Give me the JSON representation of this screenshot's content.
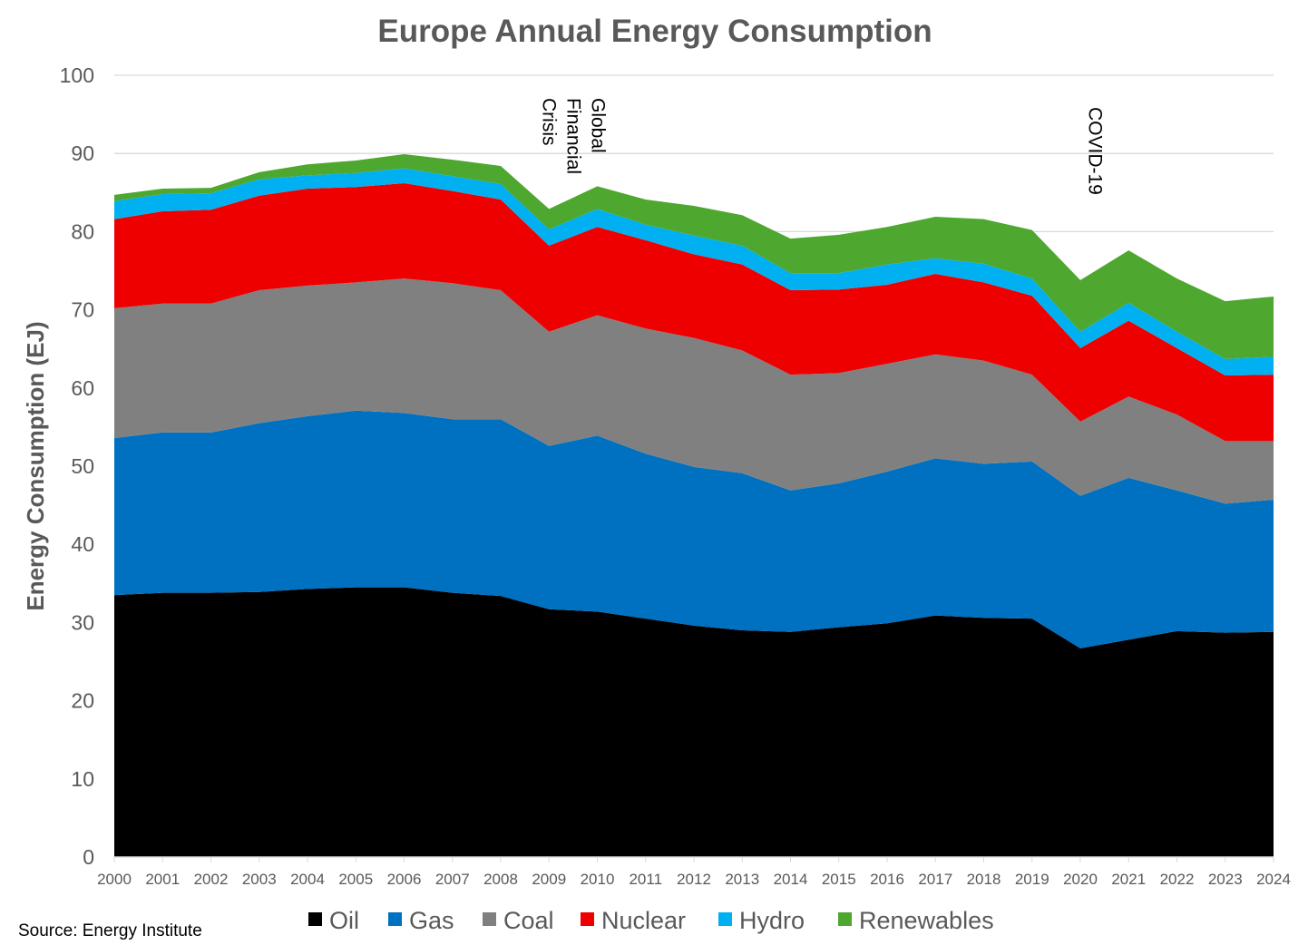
{
  "chart_data": {
    "type": "area",
    "stacked": true,
    "title": "Europe Annual Energy Consumption",
    "xlabel": "",
    "ylabel": "Energy Consumption (EJ)",
    "ylim": [
      0,
      100
    ],
    "yticks": [
      0,
      10,
      20,
      30,
      40,
      50,
      60,
      70,
      80,
      90,
      100
    ],
    "grid": true,
    "legend_position": "bottom",
    "x": [
      2000,
      2001,
      2002,
      2003,
      2004,
      2005,
      2006,
      2007,
      2008,
      2009,
      2010,
      2011,
      2012,
      2013,
      2014,
      2015,
      2016,
      2017,
      2018,
      2019,
      2020,
      2021,
      2022,
      2023,
      2024
    ],
    "series": [
      {
        "name": "Oil",
        "color": "#000000",
        "values": [
          33.5,
          33.8,
          33.8,
          33.9,
          34.3,
          34.5,
          34.5,
          33.8,
          33.4,
          31.7,
          31.4,
          30.5,
          29.6,
          29.0,
          28.8,
          29.4,
          29.9,
          30.9,
          30.6,
          30.5,
          26.7,
          27.8,
          28.9,
          28.7,
          28.8
        ]
      },
      {
        "name": "Gas",
        "color": "#0070C0",
        "values": [
          20.1,
          20.5,
          20.5,
          21.6,
          22.1,
          22.6,
          22.3,
          22.2,
          22.6,
          20.9,
          22.5,
          21.1,
          20.3,
          20.1,
          18.1,
          18.4,
          19.4,
          20.1,
          19.7,
          20.1,
          19.5,
          20.7,
          18.0,
          16.5,
          16.9
        ]
      },
      {
        "name": "Coal",
        "color": "#808080",
        "values": [
          16.6,
          16.5,
          16.5,
          17.0,
          16.7,
          16.4,
          17.2,
          17.4,
          16.5,
          14.6,
          15.4,
          16.0,
          16.5,
          15.7,
          14.8,
          14.1,
          13.8,
          13.3,
          13.2,
          11.1,
          9.5,
          10.4,
          9.7,
          8.0,
          7.5
        ]
      },
      {
        "name": "Nuclear",
        "color": "#EE0000",
        "values": [
          11.4,
          11.8,
          12.0,
          12.1,
          12.4,
          12.2,
          12.2,
          11.8,
          11.6,
          11.0,
          11.3,
          11.3,
          10.7,
          11.0,
          10.8,
          10.7,
          10.1,
          10.3,
          10.0,
          10.1,
          9.4,
          9.7,
          8.5,
          8.4,
          8.5
        ]
      },
      {
        "name": "Hydro",
        "color": "#00B0F0",
        "values": [
          2.3,
          2.2,
          2.1,
          2.1,
          1.7,
          1.8,
          1.9,
          1.9,
          2.0,
          2.1,
          2.3,
          2.0,
          2.4,
          2.4,
          2.2,
          2.1,
          2.6,
          2.0,
          2.4,
          2.2,
          2.1,
          2.3,
          2.1,
          2.1,
          2.3
        ]
      },
      {
        "name": "Renewables",
        "color": "#4EA72E",
        "values": [
          0.8,
          0.7,
          0.7,
          0.9,
          1.4,
          1.6,
          1.8,
          2.1,
          2.3,
          2.6,
          2.9,
          3.2,
          3.8,
          3.9,
          4.4,
          4.9,
          4.8,
          5.3,
          5.7,
          6.2,
          6.6,
          6.7,
          6.8,
          7.4,
          7.7
        ]
      }
    ],
    "annotations": [
      {
        "text": "Global\nFinancial\nCrisis",
        "x": 2009.5
      },
      {
        "text": "COVID-19",
        "x": 2020.3
      }
    ],
    "source": "Source: Energy Institute"
  }
}
